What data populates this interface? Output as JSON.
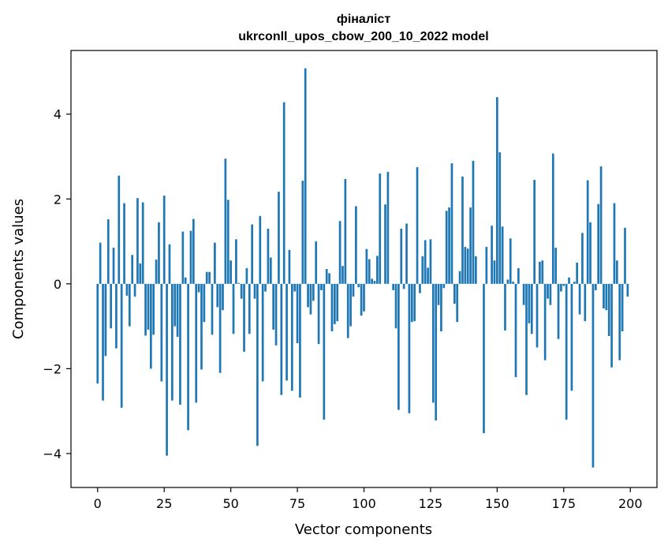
{
  "chart_data": {
    "type": "bar",
    "title_line1": "фіналіст",
    "title_line2": "ukrconll_upos_cbow_200_10_2022 model",
    "xlabel": "Vector components",
    "ylabel": "Components values",
    "xlim": [
      -10,
      210
    ],
    "ylim": [
      -4.8,
      5.5
    ],
    "xticks": [
      0,
      25,
      50,
      75,
      100,
      125,
      150,
      175,
      200
    ],
    "yticks": [
      -4,
      -2,
      0,
      2,
      4
    ],
    "ytick_labels": [
      "−4",
      "−2",
      "0",
      "2",
      "4"
    ],
    "bar_color": "#1f77b4",
    "grid": false,
    "values": [
      -2.35,
      0.97,
      -2.75,
      -1.7,
      1.52,
      -1.05,
      0.85,
      -1.52,
      2.55,
      -2.92,
      1.9,
      -0.28,
      -1.0,
      0.68,
      -0.3,
      2.02,
      0.48,
      1.92,
      -1.22,
      -1.08,
      -2.0,
      -1.2,
      0.57,
      1.45,
      -2.3,
      2.08,
      -4.05,
      0.93,
      -2.75,
      -1.0,
      -1.25,
      -2.85,
      1.23,
      0.15,
      -3.45,
      1.25,
      1.53,
      -2.8,
      -0.2,
      -2.02,
      -0.9,
      0.28,
      0.28,
      -1.2,
      0.97,
      -0.55,
      -2.1,
      -0.62,
      2.95,
      1.98,
      0.55,
      -1.18,
      1.05,
      0.02,
      -0.35,
      -1.6,
      0.37,
      -1.18,
      1.4,
      -0.35,
      -3.82,
      1.6,
      -2.3,
      -0.18,
      1.3,
      0.62,
      -1.08,
      -1.45,
      2.17,
      -2.62,
      4.28,
      -2.28,
      0.8,
      -2.52,
      -0.18,
      -1.4,
      -2.68,
      2.43,
      5.08,
      -0.55,
      -0.72,
      -0.4,
      1.0,
      -1.42,
      -0.15,
      -3.2,
      0.35,
      0.25,
      -1.12,
      -0.95,
      -0.88,
      1.48,
      0.42,
      2.47,
      -1.28,
      -1.0,
      -0.3,
      1.83,
      -0.08,
      -0.75,
      -0.65,
      0.82,
      0.58,
      0.12,
      0.07,
      0.66,
      2.6,
      0.0,
      1.87,
      2.64,
      0.0,
      -0.15,
      -1.05,
      -2.97,
      1.3,
      -0.12,
      1.42,
      -3.05,
      -0.9,
      -0.88,
      2.75,
      -0.22,
      0.65,
      1.03,
      0.38,
      1.05,
      -2.8,
      -3.22,
      -0.5,
      -1.12,
      -0.1,
      1.72,
      1.8,
      2.84,
      -0.47,
      -0.9,
      0.3,
      2.53,
      0.87,
      0.83,
      1.8,
      2.9,
      0.65,
      0.0,
      0.0,
      -3.52,
      0.87,
      0.0,
      1.37,
      0.55,
      4.4,
      3.1,
      1.35,
      -1.1,
      0.1,
      1.07,
      0.05,
      -2.2,
      0.37,
      0.0,
      -0.5,
      -2.62,
      -0.93,
      -1.18,
      2.45,
      -1.5,
      0.52,
      0.55,
      -1.8,
      -0.35,
      -0.5,
      3.07,
      0.85,
      -1.3,
      -0.18,
      -0.05,
      -3.2,
      0.15,
      -2.52,
      0.05,
      0.5,
      -0.72,
      1.2,
      -0.88,
      2.44,
      1.45,
      -4.33,
      -0.15,
      1.88,
      2.77,
      -0.58,
      -0.62,
      -1.23,
      -1.97,
      1.9,
      0.55,
      -1.8,
      -1.12,
      1.32,
      -0.3
    ]
  }
}
